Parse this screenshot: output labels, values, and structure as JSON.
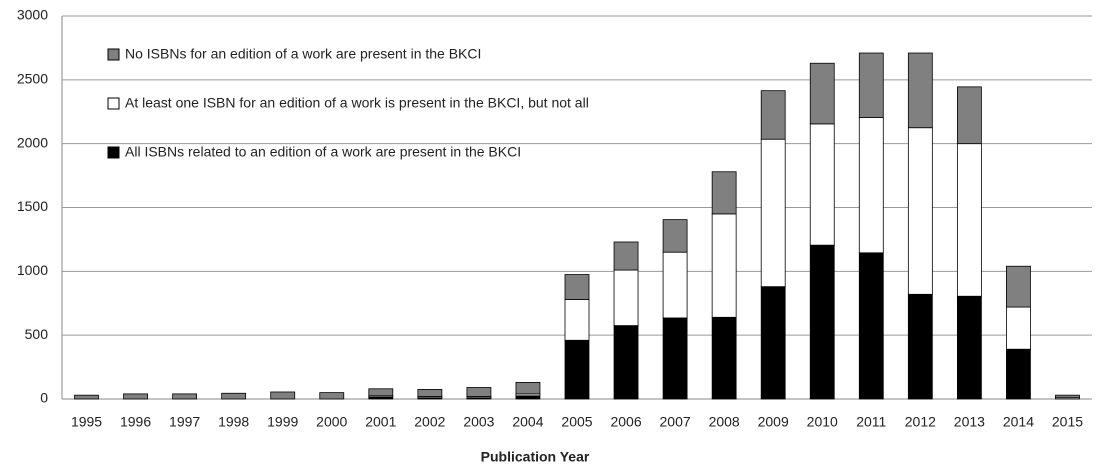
{
  "chart_data": {
    "type": "stacked_bar",
    "x_label": "Publication Year",
    "categories": [
      "1995",
      "1996",
      "1997",
      "1998",
      "1999",
      "2000",
      "2001",
      "2002",
      "2003",
      "2004",
      "2005",
      "2006",
      "2007",
      "2008",
      "2009",
      "2010",
      "2011",
      "2012",
      "2013",
      "2014",
      "2015"
    ],
    "series": [
      {
        "name": "All ISBNs related to an edition of a work are present in the BKCI",
        "color": "#000000",
        "values": [
          0,
          0,
          0,
          0,
          0,
          0,
          15,
          10,
          10,
          25,
          460,
          575,
          635,
          640,
          880,
          1205,
          1145,
          820,
          805,
          390,
          0
        ]
      },
      {
        "name": "At least one ISBN for an edition of a work is present in the BKCI, but not all",
        "color": "#ffffff",
        "values": [
          0,
          0,
          0,
          0,
          0,
          0,
          10,
          10,
          10,
          15,
          320,
          435,
          515,
          810,
          1155,
          950,
          1060,
          1305,
          1195,
          330,
          10
        ]
      },
      {
        "name": "No ISBNs for an edition of a work are present in the BKCI",
        "color": "#808080",
        "values": [
          30,
          40,
          40,
          45,
          55,
          50,
          55,
          55,
          70,
          90,
          195,
          220,
          255,
          330,
          380,
          475,
          505,
          585,
          445,
          320,
          20
        ]
      }
    ],
    "ylim": [
      0,
      3000
    ],
    "yticks": [
      0,
      500,
      1000,
      1500,
      2000,
      2500,
      3000
    ],
    "grid": true,
    "legend": "upper left"
  }
}
